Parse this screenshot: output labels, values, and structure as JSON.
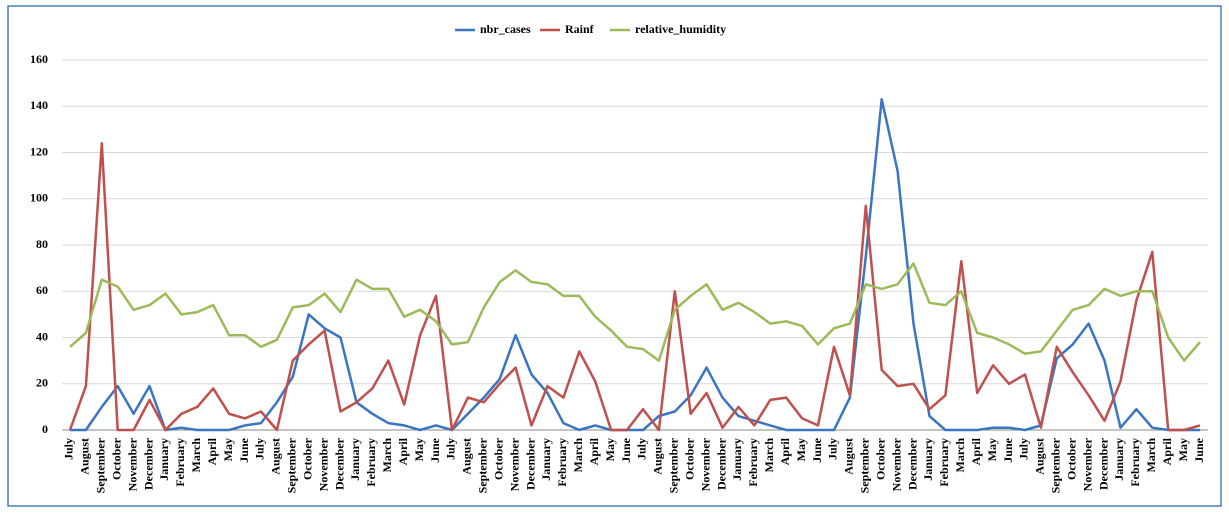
{
  "chart_data": {
    "type": "line",
    "categories": [
      "July",
      "August",
      "September",
      "October",
      "November",
      "December",
      "January",
      "February",
      "March",
      "April",
      "May",
      "June",
      "July",
      "August",
      "September",
      "October",
      "November",
      "December",
      "January",
      "February",
      "March",
      "April",
      "May",
      "June",
      "July",
      "August",
      "September",
      "October",
      "November",
      "December",
      "January",
      "February",
      "March",
      "April",
      "May",
      "June",
      "July",
      "August",
      "September",
      "October",
      "November",
      "December",
      "January",
      "February",
      "March",
      "April",
      "May",
      "June",
      "July",
      "August",
      "September",
      "October",
      "November",
      "December",
      "January",
      "February",
      "March",
      "April",
      "May",
      "June",
      "July",
      "August",
      "September",
      "October",
      "November",
      "December",
      "January",
      "February",
      "March",
      "April",
      "May",
      "June"
    ],
    "series": [
      {
        "name": "nbr_cases",
        "color": "#3a75c4",
        "values": [
          0,
          0,
          10,
          19,
          7,
          19,
          0,
          1,
          0,
          0,
          0,
          2,
          3,
          12,
          23,
          50,
          44,
          40,
          12,
          7,
          3,
          2,
          0,
          2,
          0,
          7,
          14,
          22,
          41,
          24,
          16,
          3,
          0,
          2,
          0,
          0,
          0,
          6,
          8,
          15,
          27,
          14,
          6,
          4,
          2,
          0,
          0,
          0,
          0,
          14,
          75,
          143,
          112,
          46,
          6,
          0,
          0,
          0,
          1,
          1,
          0,
          2,
          31,
          37,
          46,
          30,
          1,
          9,
          1,
          0,
          0,
          0
        ]
      },
      {
        "name": "Rainf",
        "color": "#c0504d",
        "values": [
          0,
          19,
          124,
          0,
          0,
          13,
          0,
          7,
          10,
          18,
          7,
          5,
          8,
          0,
          30,
          37,
          43,
          8,
          12,
          18,
          30,
          11,
          41,
          58,
          0,
          14,
          12,
          20,
          27,
          2,
          19,
          14,
          34,
          21,
          0,
          0,
          9,
          0,
          60,
          7,
          16,
          1,
          10,
          2,
          13,
          14,
          5,
          2,
          36,
          15,
          97,
          26,
          19,
          20,
          9,
          15,
          73,
          16,
          28,
          20,
          24,
          1,
          36,
          25,
          15,
          4,
          21,
          56,
          77,
          0,
          0,
          2
        ]
      },
      {
        "name": "relative_humidity",
        "color": "#9bbb59",
        "values": [
          36,
          42,
          65,
          62,
          52,
          54,
          59,
          50,
          51,
          54,
          41,
          41,
          36,
          39,
          53,
          54,
          59,
          51,
          65,
          61,
          61,
          49,
          52,
          47,
          37,
          38,
          53,
          64,
          69,
          64,
          63,
          58,
          58,
          49,
          43,
          36,
          35,
          30,
          52,
          58,
          63,
          52,
          55,
          51,
          46,
          47,
          45,
          37,
          44,
          46,
          63,
          61,
          63,
          72,
          55,
          54,
          60,
          42,
          40,
          37,
          33,
          34,
          43,
          52,
          54,
          61,
          58,
          60,
          60,
          40,
          30,
          38
        ]
      }
    ],
    "ylim": [
      0,
      160
    ],
    "yticks": [
      0,
      20,
      40,
      60,
      80,
      100,
      120,
      140,
      160
    ],
    "grid": true,
    "legend": "top"
  }
}
